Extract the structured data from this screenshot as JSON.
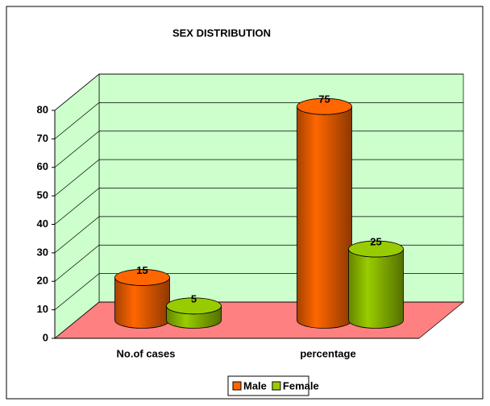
{
  "chart_data": {
    "type": "bar3d",
    "title": "SEX DISTRIBUTION",
    "categories": [
      "No.of cases",
      "percentage"
    ],
    "series": [
      {
        "name": "Male",
        "color": "#ff6600",
        "values": [
          15,
          75
        ]
      },
      {
        "name": "Female",
        "color": "#99cc00",
        "values": [
          5,
          25
        ]
      }
    ],
    "ylim": [
      0,
      80
    ],
    "yticks": [
      0,
      10,
      20,
      30,
      40,
      50,
      60,
      70,
      80
    ],
    "grid": true,
    "legend": "bottom"
  }
}
